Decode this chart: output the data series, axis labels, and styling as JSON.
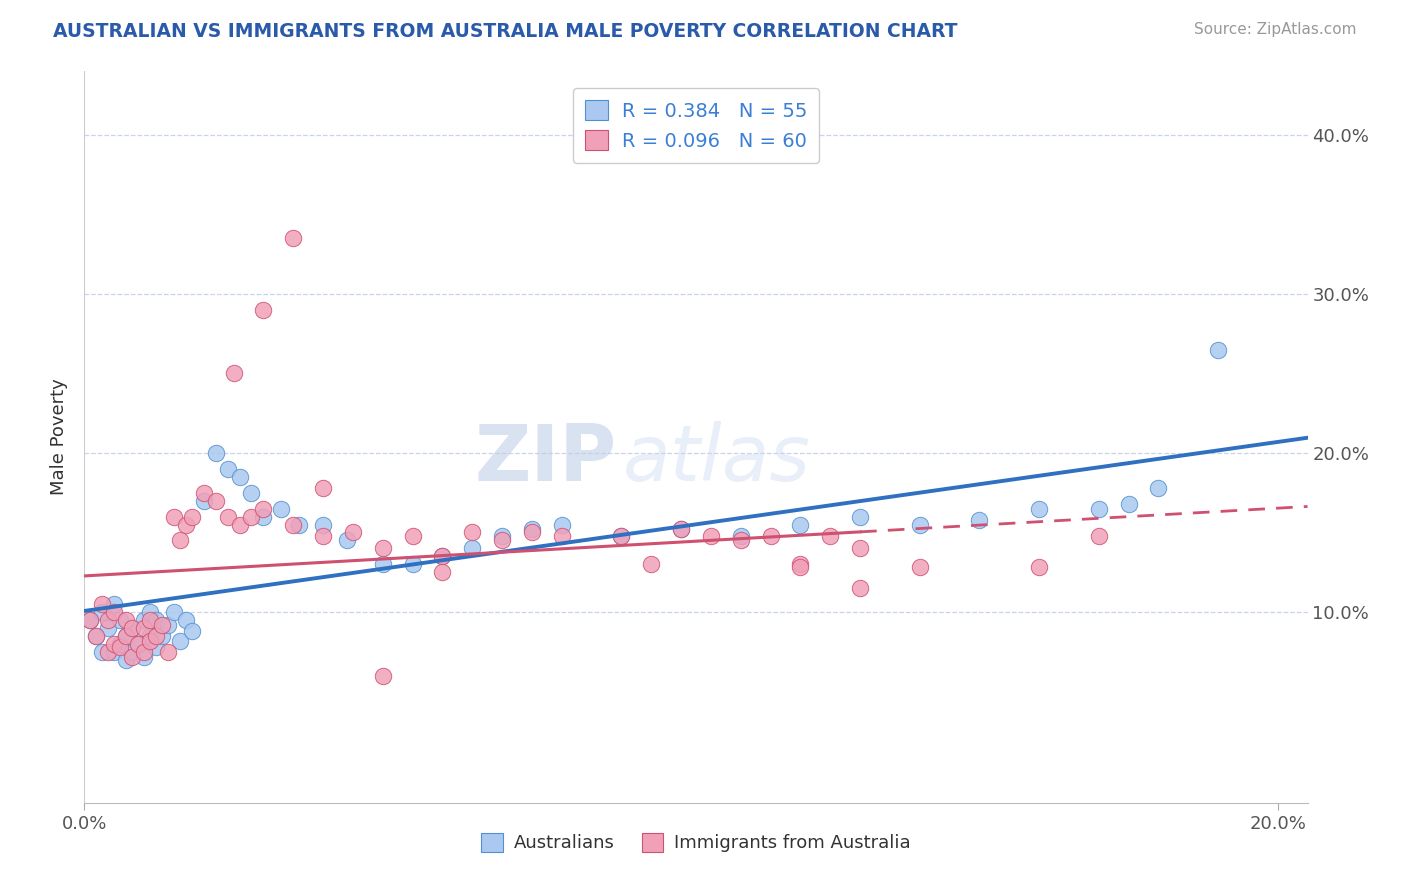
{
  "title": "AUSTRALIAN VS IMMIGRANTS FROM AUSTRALIA MALE POVERTY CORRELATION CHART",
  "source": "Source: ZipAtlas.com",
  "ylabel": "Male Poverty",
  "watermark_zip": "ZIP",
  "watermark_atlas": "atlas",
  "xlim": [
    0.0,
    0.205
  ],
  "ylim": [
    -0.02,
    0.44
  ],
  "series1_name": "Australians",
  "series1_color": "#aac8f0",
  "series1_edge_color": "#5090d0",
  "series1_line_color": "#3070c0",
  "series1_R": 0.384,
  "series1_N": 55,
  "series2_name": "Immigrants from Australia",
  "series2_color": "#f0a0b8",
  "series2_edge_color": "#d05070",
  "series2_line_color": "#d05070",
  "series2_R": 0.096,
  "series2_N": 60,
  "legend_color": "#3a7fd5",
  "background_color": "#ffffff",
  "grid_color": "#c8d4e8",
  "series1_x": [
    0.001,
    0.002,
    0.003,
    0.003,
    0.004,
    0.005,
    0.005,
    0.006,
    0.006,
    0.007,
    0.007,
    0.008,
    0.008,
    0.009,
    0.01,
    0.01,
    0.011,
    0.011,
    0.012,
    0.012,
    0.013,
    0.014,
    0.015,
    0.016,
    0.017,
    0.018,
    0.02,
    0.022,
    0.024,
    0.026,
    0.028,
    0.03,
    0.033,
    0.036,
    0.04,
    0.044,
    0.05,
    0.055,
    0.06,
    0.065,
    0.07,
    0.075,
    0.08,
    0.09,
    0.1,
    0.11,
    0.12,
    0.13,
    0.14,
    0.15,
    0.16,
    0.17,
    0.175,
    0.18,
    0.19
  ],
  "series1_y": [
    0.095,
    0.085,
    0.1,
    0.075,
    0.09,
    0.075,
    0.105,
    0.08,
    0.095,
    0.07,
    0.085,
    0.075,
    0.09,
    0.08,
    0.095,
    0.072,
    0.1,
    0.085,
    0.095,
    0.078,
    0.085,
    0.092,
    0.1,
    0.082,
    0.095,
    0.088,
    0.17,
    0.2,
    0.19,
    0.185,
    0.175,
    0.16,
    0.165,
    0.155,
    0.155,
    0.145,
    0.13,
    0.13,
    0.135,
    0.14,
    0.148,
    0.152,
    0.155,
    0.148,
    0.152,
    0.148,
    0.155,
    0.16,
    0.155,
    0.158,
    0.165,
    0.165,
    0.168,
    0.178,
    0.265
  ],
  "series2_x": [
    0.001,
    0.002,
    0.003,
    0.004,
    0.004,
    0.005,
    0.005,
    0.006,
    0.007,
    0.007,
    0.008,
    0.008,
    0.009,
    0.01,
    0.01,
    0.011,
    0.011,
    0.012,
    0.013,
    0.014,
    0.015,
    0.016,
    0.017,
    0.018,
    0.02,
    0.022,
    0.024,
    0.026,
    0.028,
    0.03,
    0.035,
    0.04,
    0.045,
    0.05,
    0.055,
    0.06,
    0.065,
    0.07,
    0.075,
    0.08,
    0.09,
    0.095,
    0.1,
    0.105,
    0.11,
    0.115,
    0.12,
    0.125,
    0.13,
    0.14,
    0.025,
    0.03,
    0.035,
    0.04,
    0.05,
    0.06,
    0.12,
    0.13,
    0.16,
    0.17
  ],
  "series2_y": [
    0.095,
    0.085,
    0.105,
    0.075,
    0.095,
    0.08,
    0.1,
    0.078,
    0.085,
    0.095,
    0.072,
    0.09,
    0.08,
    0.075,
    0.09,
    0.082,
    0.095,
    0.085,
    0.092,
    0.075,
    0.16,
    0.145,
    0.155,
    0.16,
    0.175,
    0.17,
    0.16,
    0.155,
    0.16,
    0.165,
    0.155,
    0.148,
    0.15,
    0.14,
    0.148,
    0.135,
    0.15,
    0.145,
    0.15,
    0.148,
    0.148,
    0.13,
    0.152,
    0.148,
    0.145,
    0.148,
    0.13,
    0.148,
    0.14,
    0.128,
    0.25,
    0.29,
    0.335,
    0.178,
    0.06,
    0.125,
    0.128,
    0.115,
    0.128,
    0.148
  ]
}
